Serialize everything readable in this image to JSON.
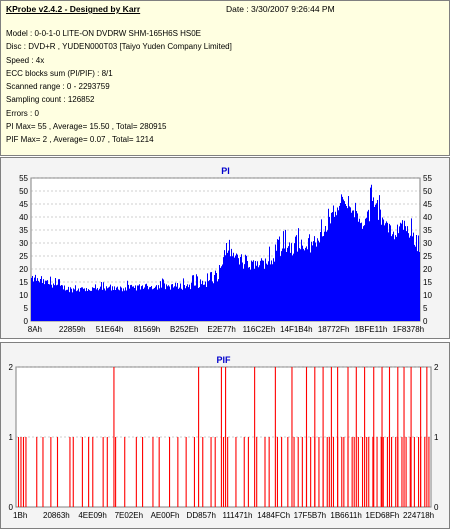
{
  "info": {
    "title": "KProbe v2.4.2 - Designed by Karr",
    "date": "Date : 3/30/2007 9:26:44 PM",
    "lines": [
      "Model : 0-0-1-0 LITE-ON DVDRW SHM-165H6S HS0E",
      "Disc : DVD+R , YUDEN000T03 [Taiyo Yuden Company Limited]",
      "Speed : 4x",
      "ECC blocks sum (PI/PIF) : 8/1",
      "Scanned range : 0 - 2293759",
      "Sampling count : 126852",
      "Errors : 0",
      "PI Max= 55 , Average= 15.50 , Total= 280915",
      "PIF Max= 2 , Average= 0.07 , Total= 1214"
    ]
  },
  "colors": {
    "info_bg": "#ffffe1",
    "bar": "#0000ff",
    "pif_bar": "#ff0000",
    "title": "#0000cc"
  },
  "chart_data": [
    {
      "type": "area",
      "title": "PI",
      "ylim": [
        0,
        55
      ],
      "yticks": [
        0,
        5,
        10,
        15,
        20,
        25,
        30,
        35,
        40,
        45,
        50,
        55
      ],
      "xtick_labels": [
        "8Ah",
        "22859h",
        "51E64h",
        "81569h",
        "B252Eh",
        "E2E77h",
        "116C2Eh",
        "14F1B4h",
        "18772Fh",
        "1BFE11h",
        "1F8378h"
      ],
      "grid": true,
      "color": "#0000ff",
      "profile": {
        "x": [
          0,
          0.05,
          0.1,
          0.2,
          0.3,
          0.4,
          0.45,
          0.48,
          0.5,
          0.55,
          0.6,
          0.62,
          0.65,
          0.7,
          0.72,
          0.75,
          0.78,
          0.8,
          0.82,
          0.85,
          0.88,
          0.9,
          0.93,
          0.95,
          0.97,
          1.0
        ],
        "avg": [
          15,
          13,
          11,
          11,
          12,
          12,
          13,
          14,
          26,
          19,
          20,
          21,
          24,
          27,
          26,
          32,
          39,
          44,
          42,
          35,
          39,
          37,
          30,
          35,
          32,
          25
        ],
        "max": [
          19,
          17,
          15,
          15,
          16,
          17,
          19,
          22,
          33,
          26,
          28,
          29,
          35,
          36,
          34,
          40,
          47,
          49,
          48,
          42,
          55,
          46,
          39,
          44,
          42,
          31
        ]
      }
    },
    {
      "type": "bar",
      "title": "PIF",
      "ylim": [
        0,
        2
      ],
      "yticks": [
        0,
        1,
        2
      ],
      "xtick_labels": [
        "1Bh",
        "20863h",
        "4EE09h",
        "7E02Eh",
        "AE00Fh",
        "DD857h",
        "111471h",
        "1484FCh",
        "17F5B7h",
        "1B6611h",
        "1ED68Fh",
        "224718h"
      ],
      "grid": true,
      "color": "#ff0000",
      "spikes_value_1": [
        0.006,
        0.012,
        0.018,
        0.024,
        0.05,
        0.065,
        0.084,
        0.1,
        0.13,
        0.138,
        0.16,
        0.175,
        0.185,
        0.21,
        0.22,
        0.24,
        0.262,
        0.29,
        0.305,
        0.33,
        0.345,
        0.37,
        0.39,
        0.41,
        0.43,
        0.45,
        0.47,
        0.48,
        0.5,
        0.51,
        0.53,
        0.55,
        0.56,
        0.58,
        0.6,
        0.61,
        0.63,
        0.64,
        0.655,
        0.67,
        0.68,
        0.69,
        0.7,
        0.71,
        0.72,
        0.73,
        0.74,
        0.75,
        0.755,
        0.765,
        0.775,
        0.785,
        0.79,
        0.8,
        0.81,
        0.815,
        0.825,
        0.835,
        0.845,
        0.85,
        0.86,
        0.87,
        0.88,
        0.885,
        0.895,
        0.905,
        0.915,
        0.92,
        0.93,
        0.94,
        0.95,
        0.96,
        0.97,
        0.975,
        0.985,
        0.995
      ],
      "spikes_value_2": [
        0.236,
        0.44,
        0.495,
        0.505,
        0.575,
        0.625,
        0.665,
        0.7,
        0.72,
        0.74,
        0.76,
        0.775,
        0.8,
        0.82,
        0.84,
        0.862,
        0.882,
        0.9,
        0.92,
        0.935,
        0.952,
        0.975,
        0.99
      ]
    }
  ]
}
